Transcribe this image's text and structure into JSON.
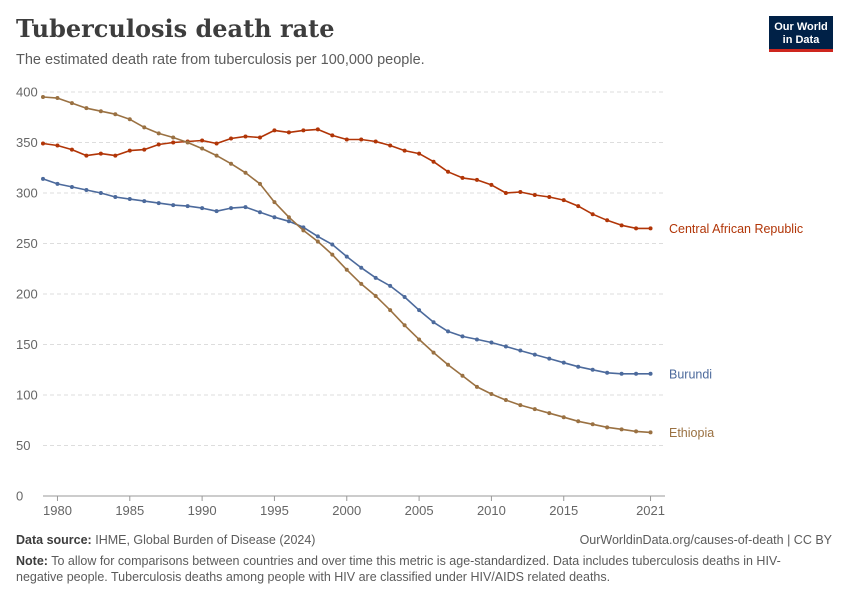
{
  "header": {
    "title": "Tuberculosis death rate",
    "subtitle": "The estimated death rate from tuberculosis per 100,000 people.",
    "logo_line1": "Our World",
    "logo_line2": "in Data"
  },
  "footer": {
    "source_label": "Data source:",
    "source_text": "IHME, Global Burden of Disease (2024)",
    "url": "OurWorldinData.org/causes-of-death | CC BY",
    "note_label": "Note:",
    "note_text": "To allow for comparisons between countries and over time this metric is age-standardized. Data includes tuberculosis deaths in HIV-negative people. Tuberculosis deaths among people with HIV are classified under HIV/AIDS related deaths."
  },
  "chart_data": {
    "type": "line",
    "title": "Tuberculosis death rate",
    "xlabel": "",
    "ylabel": "",
    "xlim": [
      1979,
      2022
    ],
    "ylim": [
      0,
      400
    ],
    "x_ticks": [
      1980,
      1985,
      1990,
      1995,
      2000,
      2005,
      2010,
      2015,
      2021
    ],
    "y_ticks": [
      0,
      50,
      100,
      150,
      200,
      250,
      300,
      350,
      400
    ],
    "grid": "horizontal dashed",
    "legend": "inline labels at line ends",
    "x": [
      1979,
      1980,
      1981,
      1982,
      1983,
      1984,
      1985,
      1986,
      1987,
      1988,
      1989,
      1990,
      1991,
      1992,
      1993,
      1994,
      1995,
      1996,
      1997,
      1998,
      1999,
      2000,
      2001,
      2002,
      2003,
      2004,
      2005,
      2006,
      2007,
      2008,
      2009,
      2010,
      2011,
      2012,
      2013,
      2014,
      2015,
      2016,
      2017,
      2018,
      2019,
      2020,
      2021
    ],
    "series": [
      {
        "name": "Central African Republic",
        "color": "#b13507",
        "values": [
          349,
          347,
          343,
          337,
          339,
          337,
          342,
          343,
          348,
          350,
          351,
          352,
          349,
          354,
          356,
          355,
          362,
          360,
          362,
          363,
          357,
          353,
          353,
          351,
          347,
          342,
          339,
          331,
          321,
          315,
          313,
          308,
          300,
          301,
          298,
          296,
          293,
          287,
          279,
          273,
          268,
          265,
          265
        ]
      },
      {
        "name": "Burundi",
        "color": "#4c6a9c",
        "values": [
          314,
          309,
          306,
          303,
          300,
          296,
          294,
          292,
          290,
          288,
          287,
          285,
          282,
          285,
          286,
          281,
          276,
          272,
          266,
          257,
          249,
          237,
          226,
          216,
          208,
          197,
          184,
          172,
          163,
          158,
          155,
          152,
          148,
          144,
          140,
          136,
          132,
          128,
          125,
          122,
          121,
          121,
          121
        ]
      },
      {
        "name": "Ethiopia",
        "color": "#9a7142",
        "values": [
          395,
          394,
          389,
          384,
          381,
          378,
          373,
          365,
          359,
          355,
          350,
          344,
          337,
          329,
          320,
          309,
          291,
          276,
          263,
          252,
          239,
          224,
          210,
          198,
          184,
          169,
          155,
          142,
          130,
          119,
          108,
          101,
          95,
          90,
          86,
          82,
          78,
          74,
          71,
          68,
          66,
          64,
          63
        ]
      }
    ]
  }
}
